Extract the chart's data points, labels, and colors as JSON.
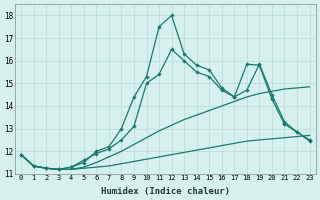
{
  "xlabel": "Humidex (Indice chaleur)",
  "xlim": [
    -0.5,
    23.5
  ],
  "ylim": [
    11.0,
    18.5
  ],
  "x_ticks": [
    0,
    1,
    2,
    3,
    4,
    5,
    6,
    7,
    8,
    9,
    10,
    11,
    12,
    13,
    14,
    15,
    16,
    17,
    18,
    19,
    20,
    21,
    22,
    23
  ],
  "yticks": [
    11,
    12,
    13,
    14,
    15,
    16,
    17,
    18
  ],
  "background_color": "#d6f0ee",
  "grid_color": "#b8dbd8",
  "line_color": "#1a7a6e",
  "line1_no_marker": {
    "x": [
      0,
      1,
      2,
      3,
      4,
      5,
      6,
      7,
      8,
      9,
      10,
      11,
      12,
      13,
      14,
      15,
      16,
      17,
      18,
      19,
      20,
      21,
      22,
      23
    ],
    "y": [
      11.85,
      11.35,
      11.25,
      11.2,
      11.2,
      11.25,
      11.3,
      11.35,
      11.45,
      11.55,
      11.65,
      11.75,
      11.85,
      11.95,
      12.05,
      12.15,
      12.25,
      12.35,
      12.45,
      12.5,
      12.55,
      12.6,
      12.65,
      12.7
    ]
  },
  "line2_no_marker": {
    "x": [
      0,
      1,
      2,
      3,
      4,
      5,
      6,
      7,
      8,
      9,
      10,
      11,
      12,
      13,
      14,
      15,
      16,
      17,
      18,
      19,
      20,
      21,
      22,
      23
    ],
    "y": [
      11.85,
      11.35,
      11.25,
      11.2,
      11.2,
      11.3,
      11.5,
      11.75,
      12.0,
      12.3,
      12.6,
      12.9,
      13.15,
      13.4,
      13.6,
      13.8,
      14.0,
      14.2,
      14.4,
      14.55,
      14.65,
      14.75,
      14.8,
      14.85
    ]
  },
  "line3_with_marker": {
    "x": [
      0,
      1,
      2,
      3,
      4,
      5,
      6,
      7,
      8,
      9,
      10,
      11,
      12,
      13,
      14,
      15,
      16,
      17,
      18,
      19,
      20,
      21,
      22,
      23
    ],
    "y": [
      11.85,
      11.35,
      11.25,
      11.2,
      11.3,
      11.5,
      12.0,
      12.2,
      13.0,
      14.4,
      15.3,
      17.5,
      18.0,
      16.3,
      15.8,
      15.6,
      14.8,
      14.4,
      14.7,
      15.85,
      14.5,
      13.3,
      12.85,
      12.5
    ]
  },
  "line4_with_marker": {
    "x": [
      0,
      1,
      2,
      3,
      4,
      5,
      6,
      7,
      8,
      9,
      10,
      11,
      12,
      13,
      14,
      15,
      16,
      17,
      18,
      19,
      20,
      21,
      22,
      23
    ],
    "y": [
      11.85,
      11.35,
      11.25,
      11.2,
      11.3,
      11.6,
      11.9,
      12.1,
      12.5,
      13.1,
      15.0,
      15.4,
      16.5,
      16.0,
      15.5,
      15.3,
      14.7,
      14.4,
      15.85,
      15.8,
      14.3,
      13.2,
      12.85,
      12.45
    ]
  }
}
